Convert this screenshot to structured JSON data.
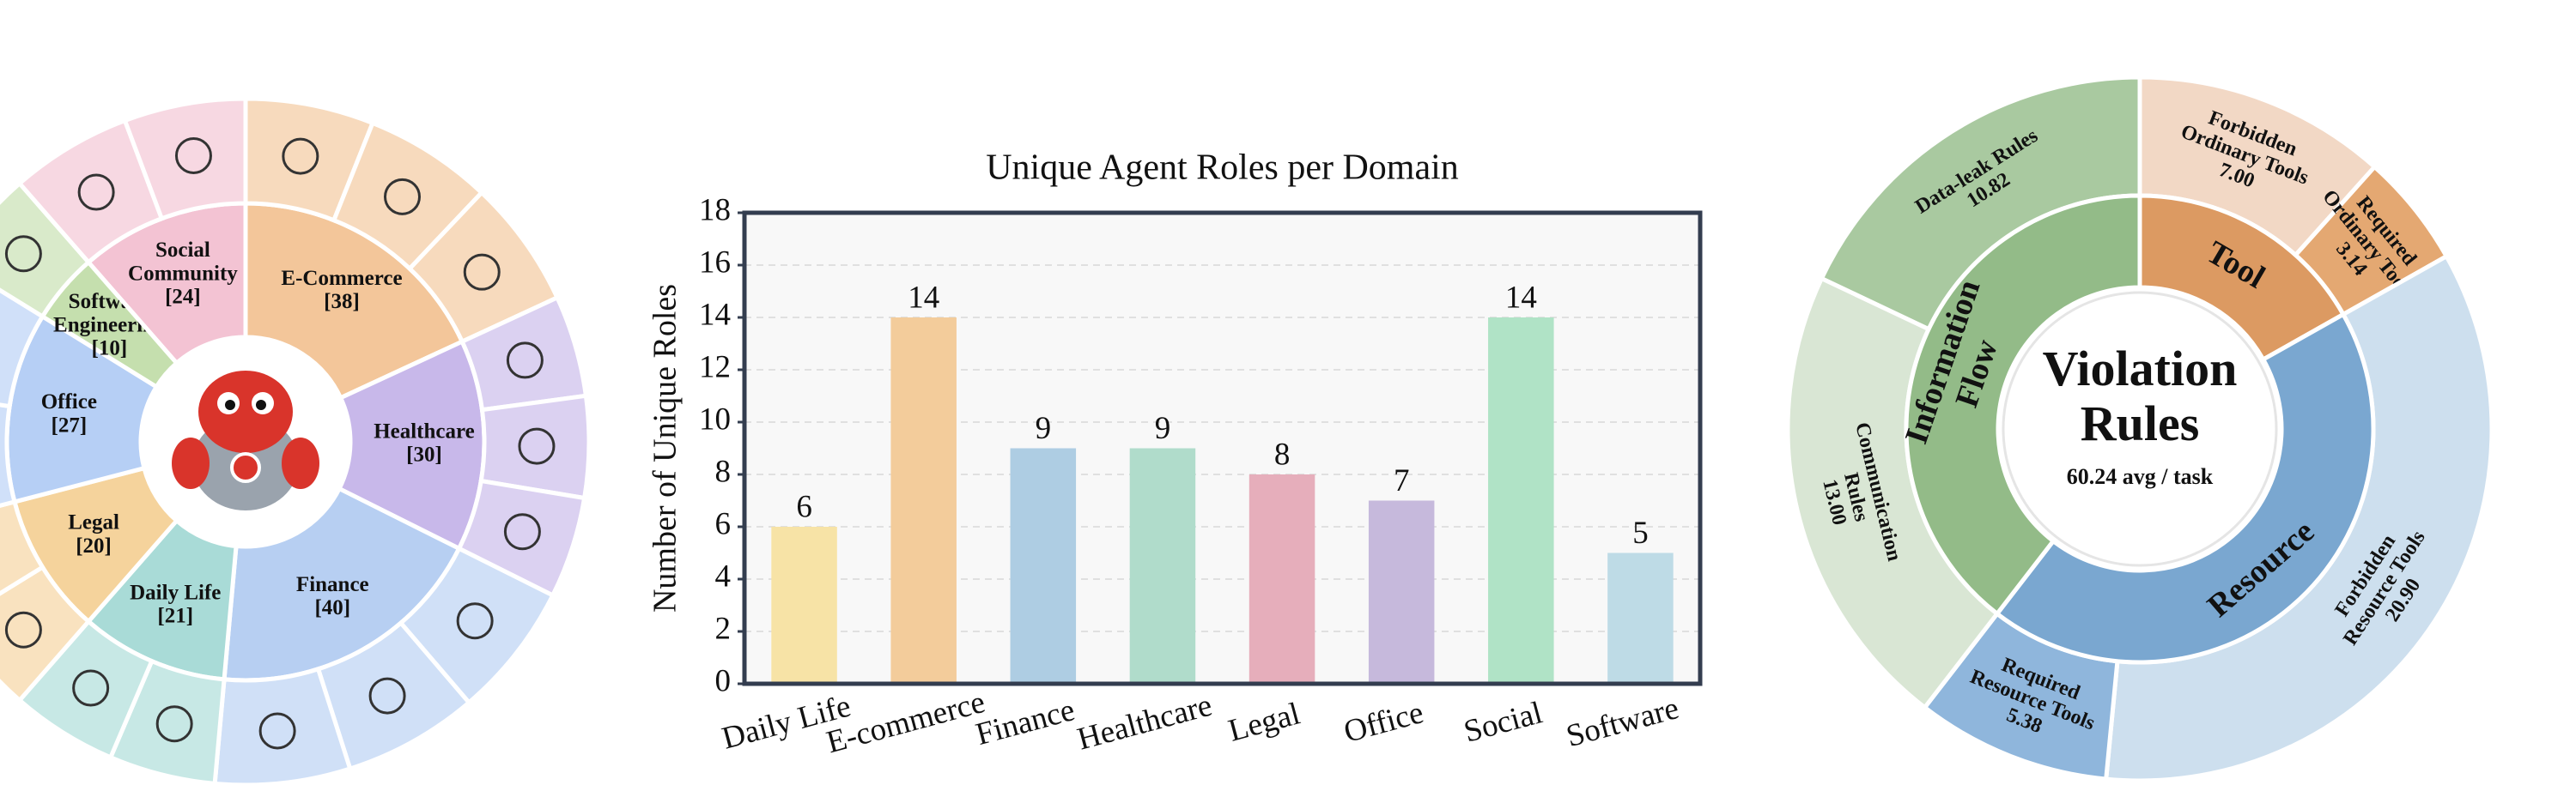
{
  "chart_data": [
    {
      "type": "sunburst",
      "categories": [
        "E-Commerce",
        "Healthcare",
        "Finance",
        "Daily Life",
        "Legal",
        "Office",
        "Software Engineering",
        "Social Community"
      ],
      "values": [
        38,
        30,
        40,
        21,
        20,
        27,
        10,
        24
      ],
      "value_labels": [
        "[38]",
        "[30]",
        "[40]",
        "[21]",
        "[20]",
        "[27]",
        "[10]",
        "[24]"
      ],
      "colors": [
        "#f3c69a",
        "#c8b8ea",
        "#b7cff2",
        "#a9dbd7",
        "#f5d39c",
        "#b6cff5",
        "#c5dfae",
        "#f3c3d3"
      ]
    },
    {
      "type": "bar",
      "title": "Unique Agent Roles per Domain",
      "ylabel": "Number of Unique Roles",
      "categories": [
        "Daily Life",
        "E-commerce",
        "Finance",
        "Healthcare",
        "Legal",
        "Office",
        "Social",
        "Software"
      ],
      "values": [
        6,
        14,
        9,
        9,
        8,
        7,
        14,
        5
      ],
      "colors": [
        "#f7e3a6",
        "#f3cc9b",
        "#aecde3",
        "#b0dccb",
        "#e6aebb",
        "#c6b9dc",
        "#b0e3c6",
        "#bedbe6"
      ],
      "ylim": [
        0,
        18
      ],
      "yticks": [
        0,
        2,
        4,
        6,
        8,
        10,
        12,
        14,
        16,
        18
      ],
      "grid": true
    },
    {
      "type": "sunburst",
      "title": "Violation Rules",
      "subtitle": "60.24 avg / task",
      "groups": [
        {
          "name": "Tool",
          "color": "#dc9a62",
          "children": [
            {
              "name": "Forbidden Ordinary Tools",
              "value": 7,
              "value_label": "7.00",
              "color": "#f2d8c5"
            },
            {
              "name": "Required Ordinary Tools",
              "value": 3.14,
              "color": "#e4a872"
            }
          ]
        },
        {
          "name": "Resource",
          "color": "#7aa7d0",
          "children": [
            {
              "name": "Forbidden Resource Tools",
              "value": 20.9,
              "value_label": "20.90",
              "color": "#cddfee"
            },
            {
              "name": "Required Resource Tools",
              "value": 5.38,
              "color": "#8fb6dc"
            }
          ]
        },
        {
          "name": "Information Flow",
          "color": "#93bb88",
          "children": [
            {
              "name": "Communication Rules",
              "value": 13,
              "value_label": "13.00",
              "color": "#d9e6d4"
            },
            {
              "name": "Data-leak Rules",
              "value": 10.82,
              "color": "#a9c9a0"
            }
          ]
        }
      ]
    }
  ]
}
